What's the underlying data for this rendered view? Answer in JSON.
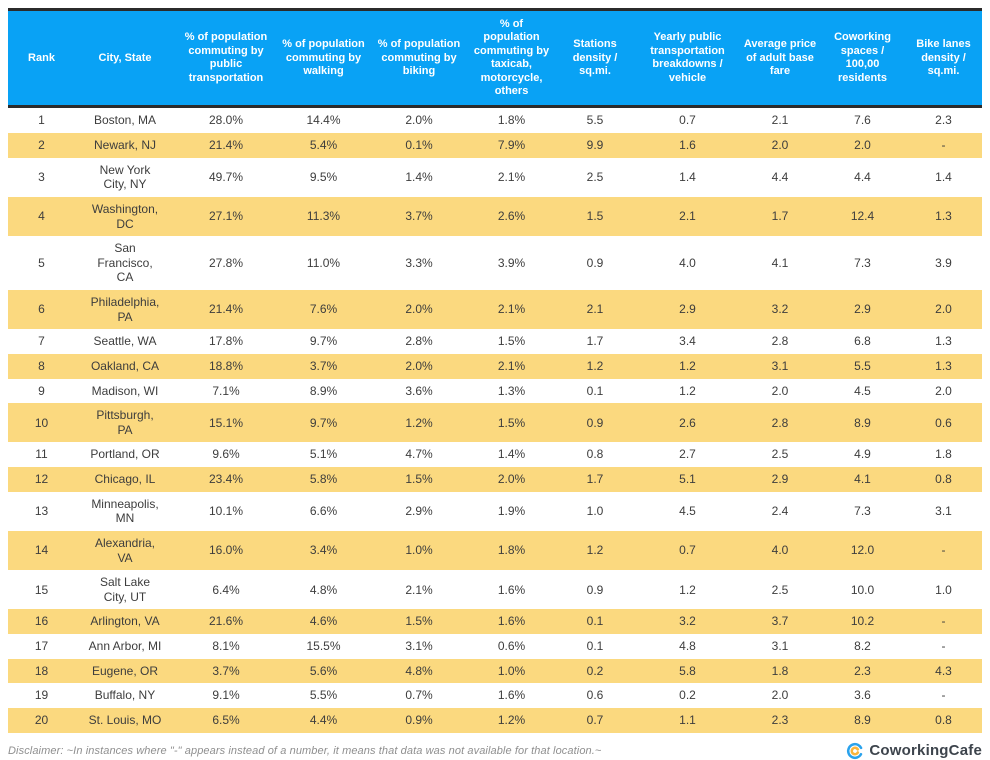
{
  "colors": {
    "header_background": "#09a2f5",
    "header_text": "#ffffff",
    "alt_row_background": "#fbd97f",
    "cell_text": "#3d3d3d",
    "divider": "#2b2b2b",
    "logo_blue": "#2aa2ec",
    "logo_yellow": "#f9b53c"
  },
  "chart_data": {
    "type": "table",
    "title": "",
    "columns": [
      "Rank",
      "City, State",
      "% of population commuting by public transportation",
      "% of population commuting by walking",
      "% of population commuting by biking",
      "% of population commuting by taxicab, motorcycle, others",
      "Stations density / sq.mi.",
      "Yearly public transportation breakdowns / vehicle",
      "Average price of adult base fare",
      "Coworking spaces / 100,00 residents",
      "Bike lanes density / sq.mi."
    ],
    "rows": [
      [
        "1",
        "Boston, MA",
        "28.0%",
        "14.4%",
        "2.0%",
        "1.8%",
        "5.5",
        "0.7",
        "2.1",
        "7.6",
        "2.3"
      ],
      [
        "2",
        "Newark, NJ",
        "21.4%",
        "5.4%",
        "0.1%",
        "7.9%",
        "9.9",
        "1.6",
        "2.0",
        "2.0",
        "-"
      ],
      [
        "3",
        "New York\nCity, NY",
        "49.7%",
        "9.5%",
        "1.4%",
        "2.1%",
        "2.5",
        "1.4",
        "4.4",
        "4.4",
        "1.4"
      ],
      [
        "4",
        "Washington,\nDC",
        "27.1%",
        "11.3%",
        "3.7%",
        "2.6%",
        "1.5",
        "2.1",
        "1.7",
        "12.4",
        "1.3"
      ],
      [
        "5",
        "San\nFrancisco,\nCA",
        "27.8%",
        "11.0%",
        "3.3%",
        "3.9%",
        "0.9",
        "4.0",
        "4.1",
        "7.3",
        "3.9"
      ],
      [
        "6",
        "Philadelphia,\nPA",
        "21.4%",
        "7.6%",
        "2.0%",
        "2.1%",
        "2.1",
        "2.9",
        "3.2",
        "2.9",
        "2.0"
      ],
      [
        "7",
        "Seattle, WA",
        "17.8%",
        "9.7%",
        "2.8%",
        "1.5%",
        "1.7",
        "3.4",
        "2.8",
        "6.8",
        "1.3"
      ],
      [
        "8",
        "Oakland, CA",
        "18.8%",
        "3.7%",
        "2.0%",
        "2.1%",
        "1.2",
        "1.2",
        "3.1",
        "5.5",
        "1.3"
      ],
      [
        "9",
        "Madison, WI",
        "7.1%",
        "8.9%",
        "3.6%",
        "1.3%",
        "0.1",
        "1.2",
        "2.0",
        "4.5",
        "2.0"
      ],
      [
        "10",
        "Pittsburgh,\nPA",
        "15.1%",
        "9.7%",
        "1.2%",
        "1.5%",
        "0.9",
        "2.6",
        "2.8",
        "8.9",
        "0.6"
      ],
      [
        "11",
        "Portland, OR",
        "9.6%",
        "5.1%",
        "4.7%",
        "1.4%",
        "0.8",
        "2.7",
        "2.5",
        "4.9",
        "1.8"
      ],
      [
        "12",
        "Chicago, IL",
        "23.4%",
        "5.8%",
        "1.5%",
        "2.0%",
        "1.7",
        "5.1",
        "2.9",
        "4.1",
        "0.8"
      ],
      [
        "13",
        "Minneapolis,\nMN",
        "10.1%",
        "6.6%",
        "2.9%",
        "1.9%",
        "1.0",
        "4.5",
        "2.4",
        "7.3",
        "3.1"
      ],
      [
        "14",
        "Alexandria,\nVA",
        "16.0%",
        "3.4%",
        "1.0%",
        "1.8%",
        "1.2",
        "0.7",
        "4.0",
        "12.0",
        "-"
      ],
      [
        "15",
        "Salt Lake\nCity, UT",
        "6.4%",
        "4.8%",
        "2.1%",
        "1.6%",
        "0.9",
        "1.2",
        "2.5",
        "10.0",
        "1.0"
      ],
      [
        "16",
        "Arlington, VA",
        "21.6%",
        "4.6%",
        "1.5%",
        "1.6%",
        "0.1",
        "3.2",
        "3.7",
        "10.2",
        "-"
      ],
      [
        "17",
        "Ann Arbor, MI",
        "8.1%",
        "15.5%",
        "3.1%",
        "0.6%",
        "0.1",
        "4.8",
        "3.1",
        "8.2",
        "-"
      ],
      [
        "18",
        "Eugene, OR",
        "3.7%",
        "5.6%",
        "4.8%",
        "1.0%",
        "0.2",
        "5.8",
        "1.8",
        "2.3",
        "4.3"
      ],
      [
        "19",
        "Buffalo, NY",
        "9.1%",
        "5.5%",
        "0.7%",
        "1.6%",
        "0.6",
        "0.2",
        "2.0",
        "3.6",
        "-"
      ],
      [
        "20",
        "St. Louis, MO",
        "6.5%",
        "4.4%",
        "0.9%",
        "1.2%",
        "0.7",
        "1.1",
        "2.3",
        "8.9",
        "0.8"
      ]
    ],
    "layout": {
      "alternating_rows_highlighted": "even ranks",
      "grid": "off",
      "alignment": "center"
    }
  },
  "footer": {
    "disclaimer": "Disclaimer: ~In instances where \"-\" appears instead of a number, it means that data was not available for that location.~",
    "logo_text": "CoworkingCafe"
  }
}
